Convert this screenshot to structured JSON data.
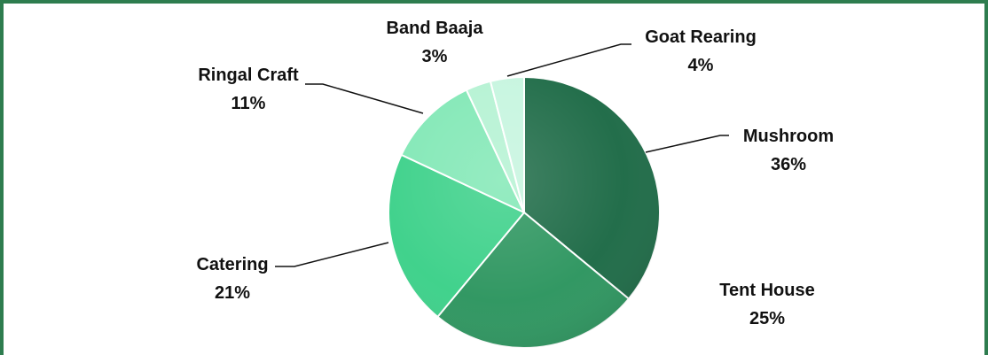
{
  "chart_data": {
    "type": "pie",
    "title": "",
    "slices": [
      {
        "name": "Mushroom",
        "value": 36,
        "label": "36%",
        "color": "#1e6b47"
      },
      {
        "name": "Tent House",
        "value": 25,
        "label": "25%",
        "color": "#2e9660"
      },
      {
        "name": "Catering",
        "value": 21,
        "label": "21%",
        "color": "#3dd18a"
      },
      {
        "name": "Ringal Craft",
        "value": 11,
        "label": "11%",
        "color": "#82e8b6"
      },
      {
        "name": "Band Baaja",
        "value": 3,
        "label": "3%",
        "color": "#b5f2d3"
      },
      {
        "name": "Goat Rearing",
        "value": 4,
        "label": "4%",
        "color": "#c6f5df"
      }
    ],
    "legend": "none"
  }
}
